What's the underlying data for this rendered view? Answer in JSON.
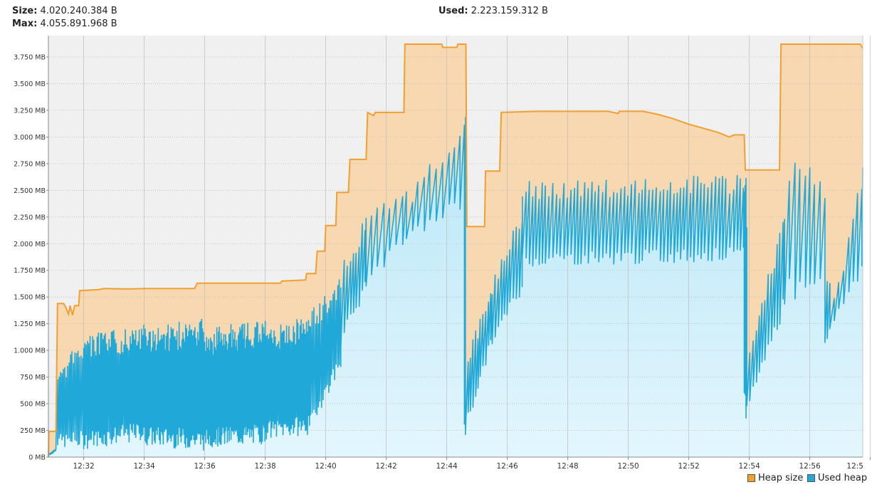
{
  "header": {
    "size_label": "Size:",
    "size_value": "4.020.240.384 B",
    "max_label": "Max:",
    "max_value": "4.055.891.968 B",
    "used_label": "Used:",
    "used_value": "2.223.159.312 B"
  },
  "colors": {
    "heap_line": "#f0a030",
    "heap_fill": "#f8d8b0",
    "used_line": "#20a8d8",
    "used_fill": "#c8ecf8",
    "plot_bg": "#f0f0f0"
  },
  "chart_data": {
    "type": "area",
    "xlabel": "",
    "ylabel": "",
    "xlim": [
      "12:30:50",
      "12:57:45"
    ],
    "ylim": [
      0,
      3950
    ],
    "y_ticks": [
      0,
      250,
      500,
      750,
      1000,
      1250,
      1500,
      1750,
      2000,
      2250,
      2500,
      2750,
      3000,
      3250,
      3500,
      3750
    ],
    "y_tick_labels": [
      "0 MB",
      "250 MB",
      "500 MB",
      "750 MB",
      "1.000 MB",
      "1.250 MB",
      "1.500 MB",
      "1.750 MB",
      "2.000 MB",
      "2.250 MB",
      "2.500 MB",
      "2.750 MB",
      "3.000 MB",
      "3.250 MB",
      "3.500 MB",
      "3.750 MB"
    ],
    "x_tick_labels": [
      "12:32",
      "12:34",
      "12:36",
      "12:38",
      "12:40",
      "12:42",
      "12:44",
      "12:46",
      "12:48",
      "12:50",
      "12:52",
      "12:54",
      "12:56",
      "12:5"
    ],
    "legend": [
      "Heap size",
      "Used heap"
    ],
    "legend_position": "bottom-right",
    "grid": true,
    "series": [
      {
        "name": "Heap size",
        "points": [
          [
            "12:30:50",
            0
          ],
          [
            "12:30:51",
            240
          ],
          [
            "12:31:05",
            240
          ],
          [
            "12:31:08",
            1440
          ],
          [
            "12:31:20",
            1440
          ],
          [
            "12:31:25",
            1400
          ],
          [
            "12:31:30",
            1340
          ],
          [
            "12:31:33",
            1420
          ],
          [
            "12:31:38",
            1330
          ],
          [
            "12:31:42",
            1420
          ],
          [
            "12:31:50",
            1420
          ],
          [
            "12:31:52",
            1560
          ],
          [
            "12:32:30",
            1570
          ],
          [
            "12:32:40",
            1580
          ],
          [
            "12:33:30",
            1575
          ],
          [
            "12:34:00",
            1580
          ],
          [
            "12:35:40",
            1580
          ],
          [
            "12:35:45",
            1630
          ],
          [
            "12:38:30",
            1630
          ],
          [
            "12:38:33",
            1650
          ],
          [
            "12:39:20",
            1660
          ],
          [
            "12:39:22",
            1720
          ],
          [
            "12:39:40",
            1720
          ],
          [
            "12:39:43",
            1930
          ],
          [
            "12:39:58",
            1930
          ],
          [
            "12:40:00",
            2170
          ],
          [
            "12:40:20",
            2170
          ],
          [
            "12:40:22",
            2480
          ],
          [
            "12:40:45",
            2480
          ],
          [
            "12:40:48",
            2790
          ],
          [
            "12:41:20",
            2790
          ],
          [
            "12:41:23",
            3230
          ],
          [
            "12:41:35",
            3200
          ],
          [
            "12:41:38",
            3230
          ],
          [
            "12:42:35",
            3230
          ],
          [
            "12:42:37",
            3870
          ],
          [
            "12:43:50",
            3870
          ],
          [
            "12:43:52",
            3840
          ],
          [
            "12:44:20",
            3840
          ],
          [
            "12:44:22",
            3870
          ],
          [
            "12:44:38",
            3870
          ],
          [
            "12:44:40",
            2160
          ],
          [
            "12:45:15",
            2160
          ],
          [
            "12:45:17",
            2680
          ],
          [
            "12:45:45",
            2680
          ],
          [
            "12:45:48",
            3230
          ],
          [
            "12:47:00",
            3240
          ],
          [
            "12:49:20",
            3240
          ],
          [
            "12:49:40",
            3220
          ],
          [
            "12:49:42",
            3240
          ],
          [
            "12:50:30",
            3240
          ],
          [
            "12:51:00",
            3210
          ],
          [
            "12:51:30",
            3170
          ],
          [
            "12:52:00",
            3120
          ],
          [
            "12:52:30",
            3080
          ],
          [
            "12:53:00",
            3040
          ],
          [
            "12:53:20",
            3000
          ],
          [
            "12:53:30",
            3020
          ],
          [
            "12:53:50",
            3020
          ],
          [
            "12:53:52",
            2690
          ],
          [
            "12:55:00",
            2690
          ],
          [
            "12:55:03",
            3870
          ],
          [
            "12:57:40",
            3870
          ],
          [
            "12:57:45",
            3830
          ]
        ]
      },
      {
        "name": "Used heap",
        "segments": [
          {
            "start": "12:30:50",
            "end": "12:31:05",
            "low_start": 20,
            "low_end": 60,
            "high_start": 30,
            "high_end": 80,
            "period_s": 2
          },
          {
            "start": "12:31:05",
            "end": "12:32:00",
            "low_start": 150,
            "low_end": 160,
            "high_start": 800,
            "high_end": 1200,
            "period_s": 3
          },
          {
            "start": "12:32:00",
            "end": "12:34:00",
            "low_start": 160,
            "low_end": 240,
            "high_start": 1150,
            "high_end": 1250,
            "period_s": 2.4
          },
          {
            "start": "12:34:00",
            "end": "12:36:00",
            "low_start": 200,
            "low_end": 160,
            "high_start": 1230,
            "high_end": 1300,
            "period_s": 2
          },
          {
            "start": "12:36:00",
            "end": "12:38:00",
            "low_start": 180,
            "low_end": 220,
            "high_start": 1200,
            "high_end": 1310,
            "period_s": 1.8
          },
          {
            "start": "12:38:00",
            "end": "12:39:30",
            "low_start": 250,
            "low_end": 300,
            "high_start": 1200,
            "high_end": 1350,
            "period_s": 2.2
          },
          {
            "start": "12:39:30",
            "end": "12:40:30",
            "low_start": 350,
            "low_end": 900,
            "high_start": 1400,
            "high_end": 1750,
            "period_s": 3
          },
          {
            "start": "12:40:30",
            "end": "12:41:20",
            "low_start": 1100,
            "low_end": 1600,
            "high_start": 1900,
            "high_end": 2300,
            "period_s": 6
          },
          {
            "start": "12:41:20",
            "end": "12:42:40",
            "low_start": 1650,
            "low_end": 2050,
            "high_start": 2300,
            "high_end": 2600,
            "period_s": 12
          },
          {
            "start": "12:42:40",
            "end": "12:44:35",
            "low_start": 2050,
            "low_end": 2400,
            "high_start": 2500,
            "high_end": 3300,
            "period_s": 12
          },
          {
            "start": "12:44:35",
            "end": "12:44:37",
            "low_start": 280,
            "low_end": 280,
            "high_start": 3250,
            "high_end": 3250,
            "period_s": 2
          },
          {
            "start": "12:44:37",
            "end": "12:45:30",
            "low_start": 280,
            "low_end": 1100,
            "high_start": 1000,
            "high_end": 1700,
            "period_s": 5
          },
          {
            "start": "12:45:30",
            "end": "12:46:30",
            "low_start": 1100,
            "low_end": 1600,
            "high_start": 1750,
            "high_end": 2450,
            "period_s": 6
          },
          {
            "start": "12:46:30",
            "end": "12:53:50",
            "low_start": 1850,
            "low_end": 1900,
            "high_start": 2600,
            "high_end": 2650,
            "period_s": 7
          },
          {
            "start": "12:53:50",
            "end": "12:53:55",
            "low_start": 470,
            "low_end": 470,
            "high_start": 2650,
            "high_end": 2650,
            "period_s": 2
          },
          {
            "start": "12:53:55",
            "end": "12:55:10",
            "low_start": 470,
            "low_end": 1450,
            "high_start": 1000,
            "high_end": 2500,
            "period_s": 6
          },
          {
            "start": "12:55:10",
            "end": "12:56:30",
            "low_start": 1550,
            "low_end": 1700,
            "high_start": 2930,
            "high_end": 2550,
            "period_s": 10
          },
          {
            "start": "12:56:30",
            "end": "12:56:40",
            "low_start": 1100,
            "low_end": 1200,
            "high_start": 1700,
            "high_end": 1700,
            "period_s": 5
          },
          {
            "start": "12:56:40",
            "end": "12:57:45",
            "low_start": 1200,
            "low_end": 1800,
            "high_start": 1500,
            "high_end": 2900,
            "period_s": 9
          }
        ]
      }
    ]
  }
}
